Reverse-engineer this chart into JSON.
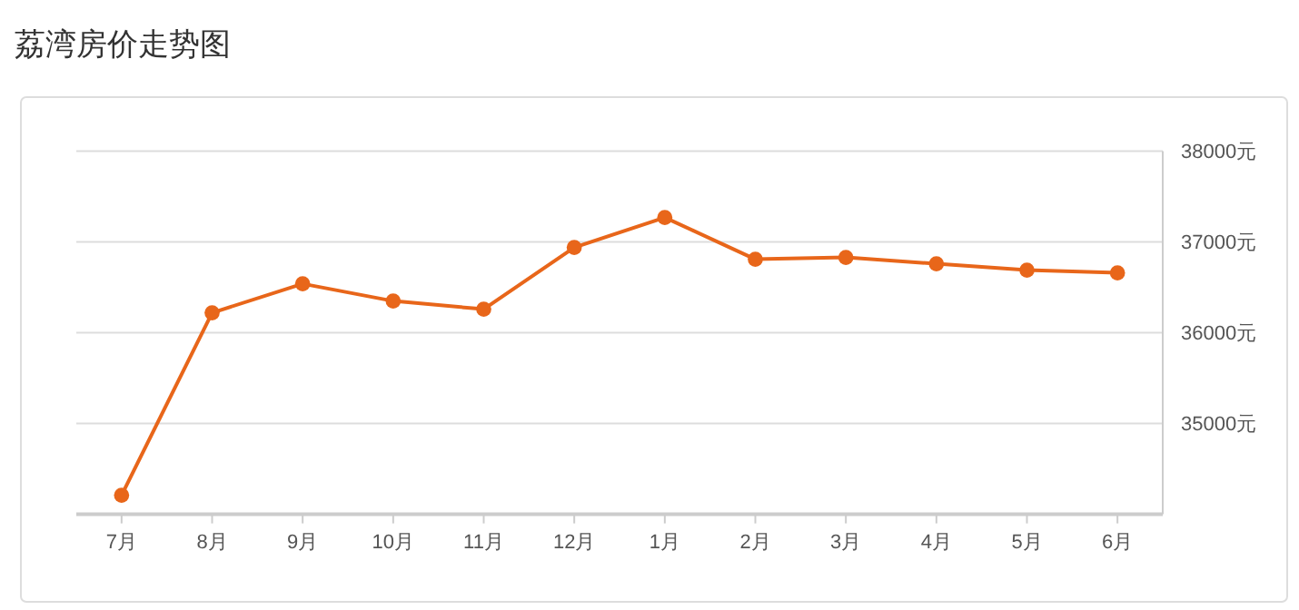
{
  "chart_data": {
    "type": "line",
    "title": "荔湾房价走势图",
    "categories": [
      "7月",
      "8月",
      "9月",
      "10月",
      "11月",
      "12月",
      "1月",
      "2月",
      "3月",
      "4月",
      "5月",
      "6月"
    ],
    "series": [
      {
        "color": "#e8661a",
        "values": [
          34210,
          36220,
          36540,
          36350,
          36260,
          36940,
          37270,
          36810,
          36830,
          36760,
          36690,
          36660
        ]
      }
    ],
    "ylim": [
      34000,
      38000
    ],
    "yticks": [
      {
        "value": 35000,
        "label": "35000元"
      },
      {
        "value": 36000,
        "label": "36000元"
      },
      {
        "value": 37000,
        "label": "37000元"
      },
      {
        "value": 38000,
        "label": "38000元"
      }
    ],
    "grid": "y",
    "marker": "circle",
    "line_style": "solid"
  }
}
